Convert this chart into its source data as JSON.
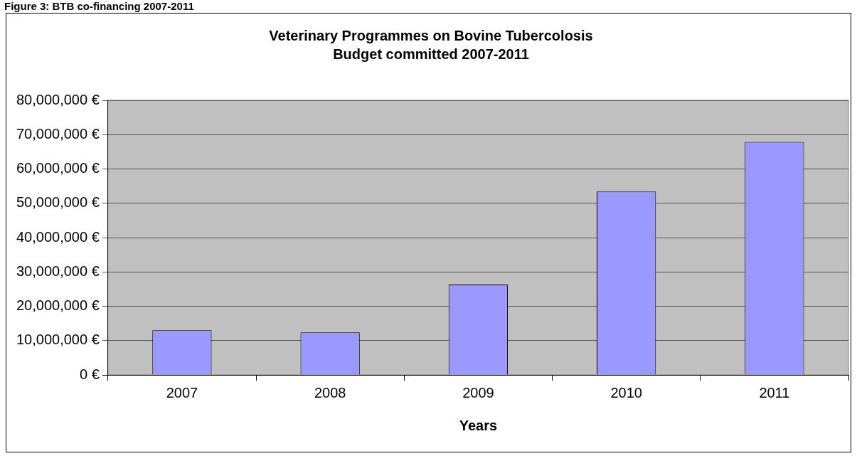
{
  "chart_data": {
    "type": "bar",
    "title": "Veterinary Programmes on Bovine Tubercolosis",
    "subtitle": "Budget committed 2007-2011",
    "xlabel": "Years",
    "annotations": [
      "Figure 3: BTB co-financing 2007-2011"
    ],
    "categories": [
      "2007",
      "2008",
      "2009",
      "2010",
      "2011"
    ],
    "values": [
      13000000,
      12400000,
      26300000,
      53400000,
      67900000
    ],
    "color": "#9999ff",
    "ylim": [
      0,
      80000000
    ],
    "yticks": [
      {
        "value": 0,
        "label": "0 €"
      },
      {
        "value": 10000000,
        "label": "10,000,000 €"
      },
      {
        "value": 20000000,
        "label": "20,000,000 €"
      },
      {
        "value": 30000000,
        "label": "30,000,000 €"
      },
      {
        "value": 40000000,
        "label": "40,000,000 €"
      },
      {
        "value": 50000000,
        "label": "50,000,000 €"
      },
      {
        "value": 60000000,
        "label": "60,000,000 €"
      },
      {
        "value": 70000000,
        "label": "70,000,000 €"
      },
      {
        "value": 80000000,
        "label": "80,000,000 €"
      }
    ],
    "grid": "y",
    "legend": false
  }
}
